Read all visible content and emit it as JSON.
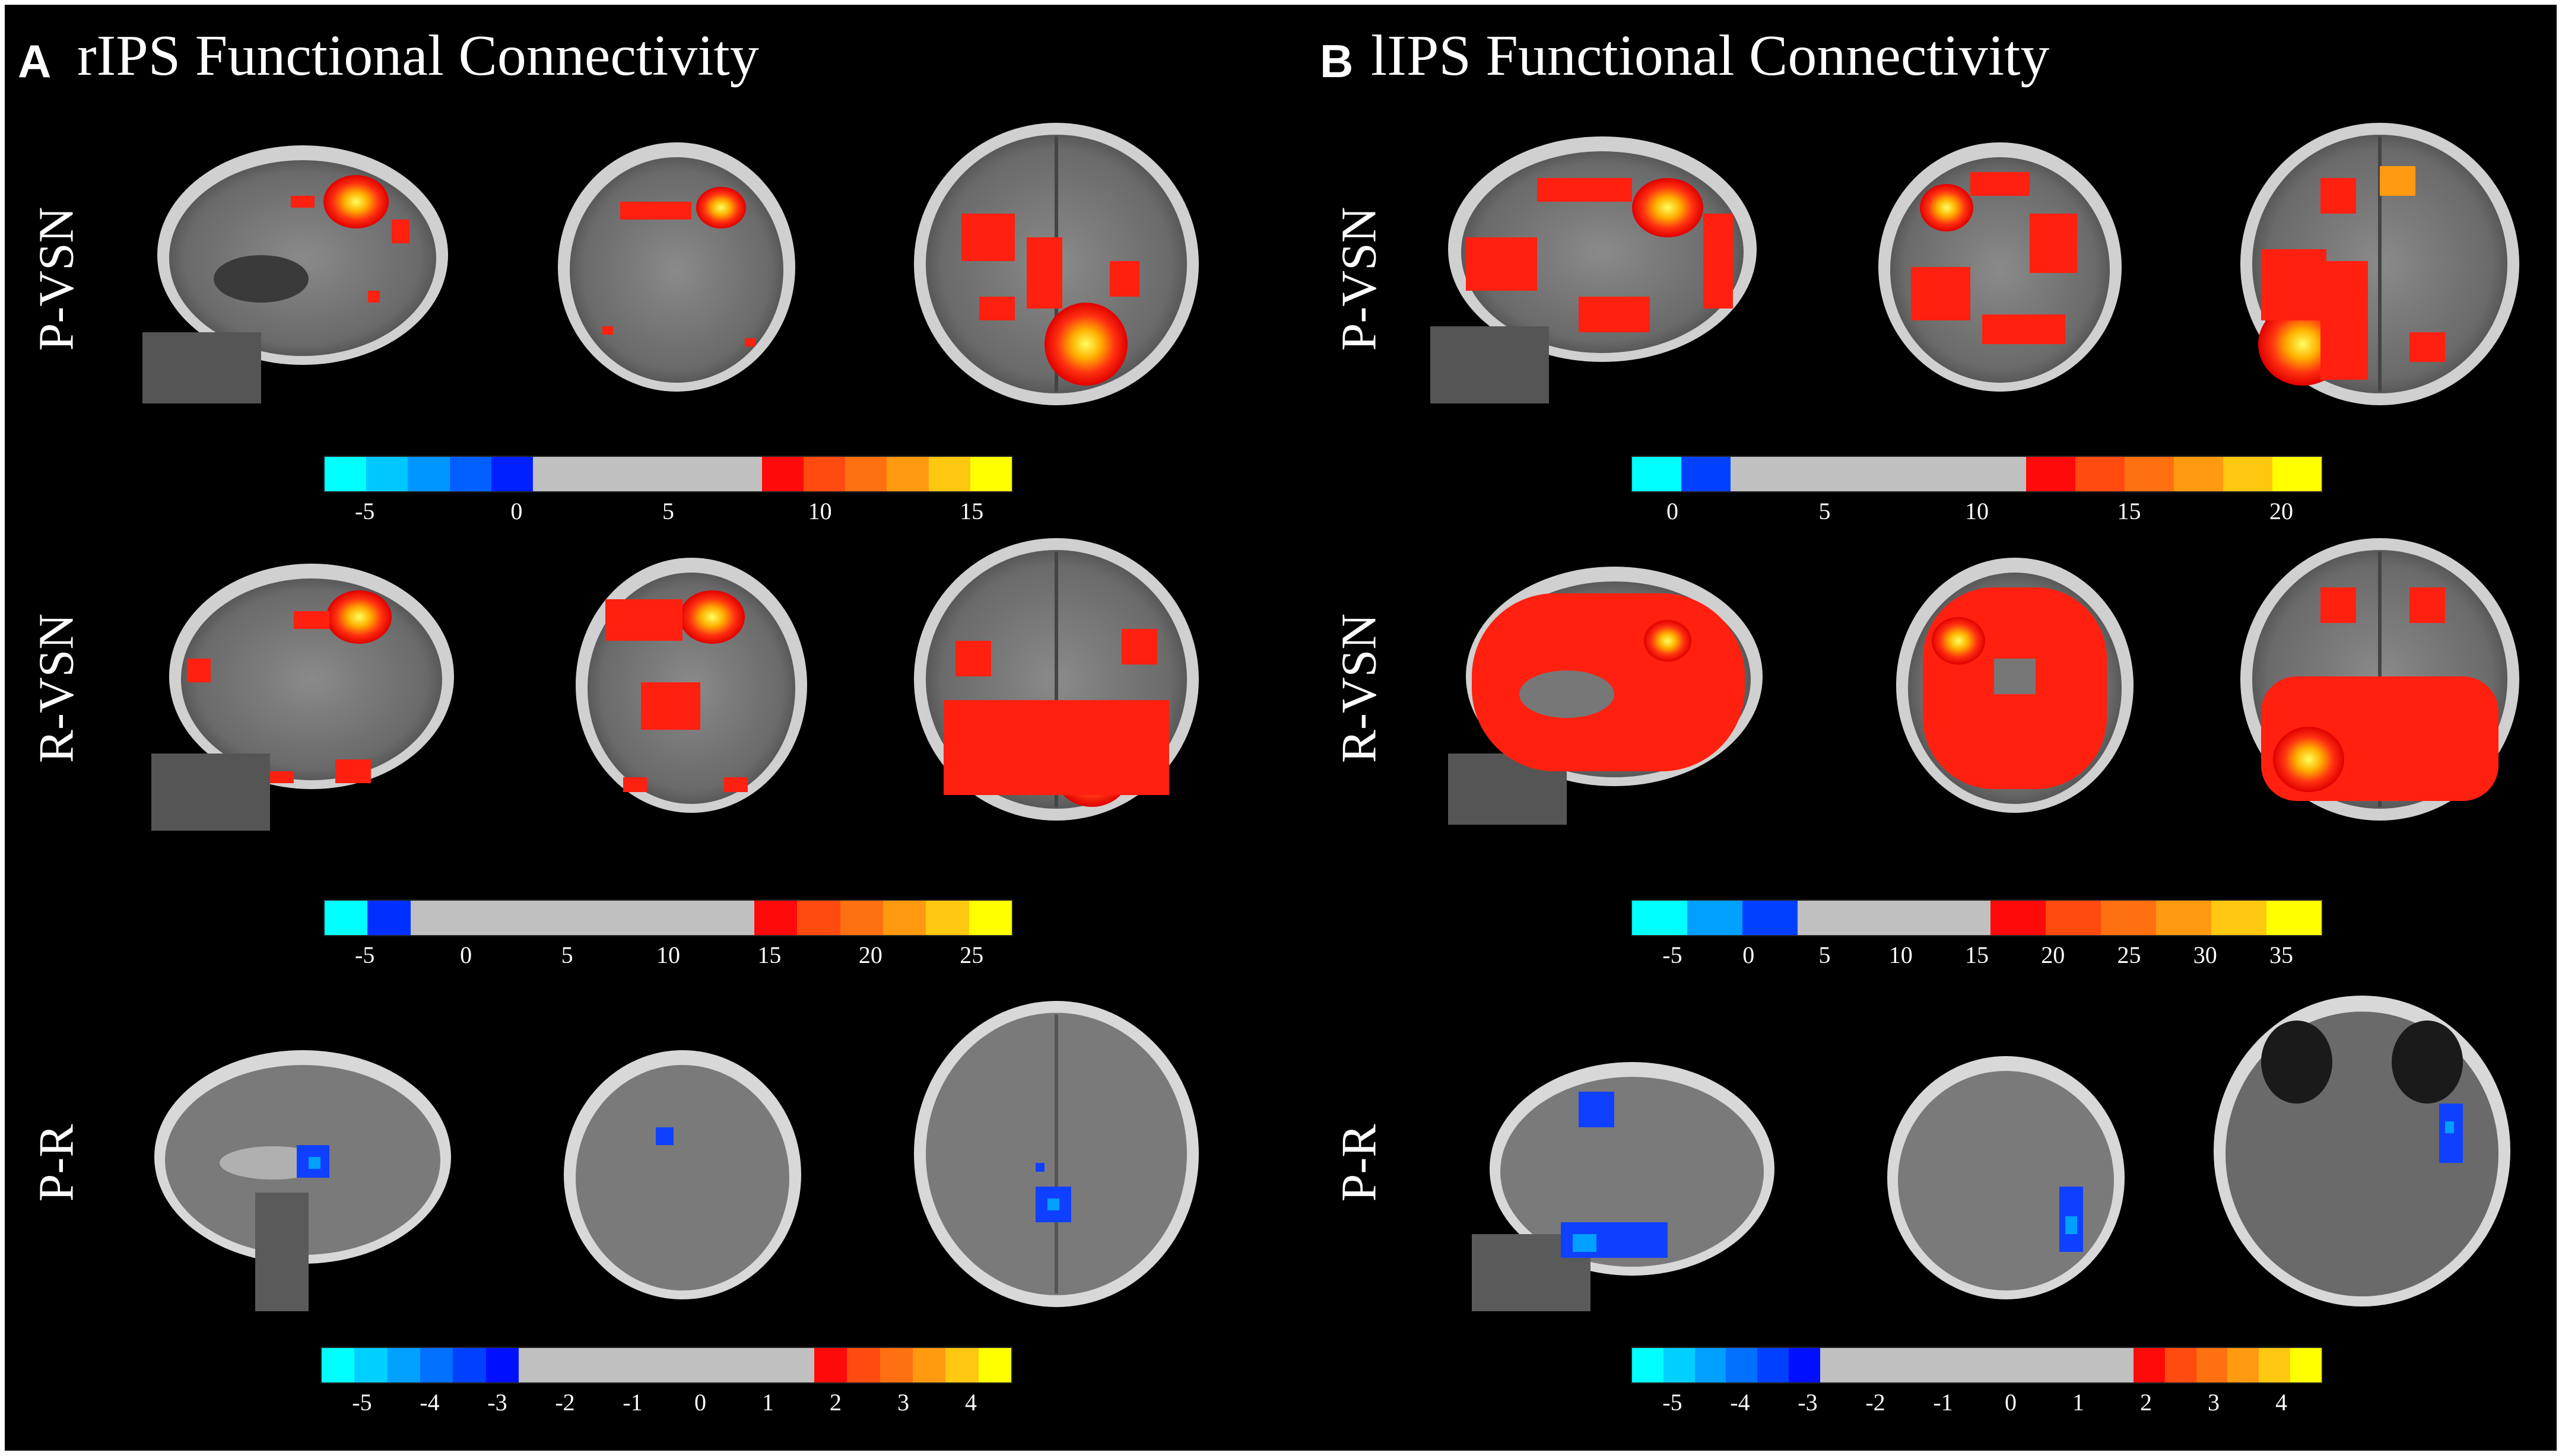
{
  "panels": [
    {
      "letter": "A",
      "title": "rIPS Functional Connectivity"
    },
    {
      "letter": "B",
      "title": "lIPS Functional Connectivity"
    }
  ],
  "rows": [
    "P-VSN",
    "R-VSN",
    "P-R"
  ],
  "colors": {
    "background": "#000000",
    "neutral": "#c0c0c0",
    "activation_low": "#ff1010",
    "activation_high": "#ffff00",
    "deactivation_low": "#0000ff",
    "deactivation_high": "#00ffff"
  },
  "colorbars": {
    "A_PVSN": {
      "neg": [
        "#00ffff",
        "#00c8ff",
        "#0096ff",
        "#0060ff",
        "#0020ff"
      ],
      "neutral_units": 5.5,
      "pos": [
        "#ff0a0a",
        "#ff4a10",
        "#ff7010",
        "#ff9a10",
        "#ffc810",
        "#ffff00"
      ],
      "ticks": [
        "-5",
        "0",
        "5",
        "10",
        "15"
      ]
    },
    "B_PVSN": {
      "neg": [
        "#00ffff",
        "#0040ff"
      ],
      "neutral_units": 6,
      "pos": [
        "#ff0a0a",
        "#ff4a10",
        "#ff7010",
        "#ff9a10",
        "#ffc810",
        "#ffff00"
      ],
      "ticks": [
        "0",
        "5",
        "10",
        "15",
        "20"
      ]
    },
    "A_RVSN": {
      "neg": [
        "#00ffff",
        "#0030ff"
      ],
      "neutral_units": 8,
      "pos": [
        "#ff0a0a",
        "#ff4a10",
        "#ff7010",
        "#ff9a10",
        "#ffc810",
        "#ffff00"
      ],
      "ticks": [
        "-5",
        "0",
        "5",
        "10",
        "15",
        "20",
        "25"
      ]
    },
    "B_RVSN": {
      "neg": [
        "#00ffff",
        "#00a0ff",
        "#0040ff"
      ],
      "neutral_units": 3.5,
      "pos": [
        "#ff0a0a",
        "#ff4a10",
        "#ff7010",
        "#ff9a10",
        "#ffc810",
        "#ffff00"
      ],
      "ticks": [
        "-5",
        "0",
        "5",
        "10",
        "15",
        "20",
        "25",
        "30",
        "35"
      ]
    },
    "A_PR": {
      "neg": [
        "#00ffff",
        "#00d0ff",
        "#00a0ff",
        "#0070ff",
        "#0040ff",
        "#0010ff"
      ],
      "neutral_units": 9,
      "pos": [
        "#ff0a0a",
        "#ff4a10",
        "#ff7010",
        "#ff9a10",
        "#ffc810",
        "#ffff00"
      ],
      "ticks": [
        "-5",
        "-4",
        "-3",
        "-2",
        "-1",
        "0",
        "1",
        "2",
        "3",
        "4"
      ]
    },
    "B_PR": {
      "neg": [
        "#00ffff",
        "#00d0ff",
        "#00a0ff",
        "#0070ff",
        "#0040ff",
        "#0010ff"
      ],
      "neutral_units": 10,
      "pos": [
        "#ff0a0a",
        "#ff4a10",
        "#ff7010",
        "#ff9a10",
        "#ffc810",
        "#ffff00"
      ],
      "ticks": [
        "-5",
        "-4",
        "-3",
        "-2",
        "-1",
        "0",
        "1",
        "2",
        "3",
        "4"
      ]
    }
  }
}
